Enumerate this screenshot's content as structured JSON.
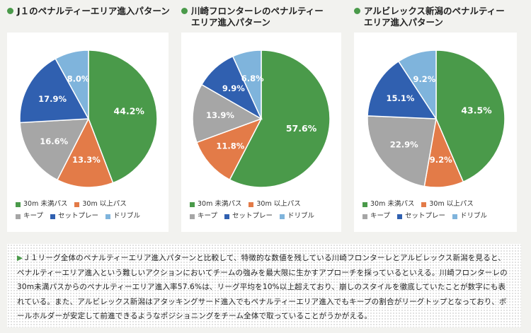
{
  "colors": {
    "green": "#4a9a4a",
    "orange": "#e37b48",
    "gray": "#a6a6a6",
    "blue": "#3060b0",
    "lightblue": "#7fb4dc",
    "label": "#ffffff"
  },
  "legend": {
    "items": [
      "30m 未満パス",
      "30m 以上パス",
      "キープ",
      "セットプレー",
      "ドリブル"
    ]
  },
  "chart_data": [
    {
      "type": "pie",
      "title": "J１のペナルティーエリア進入パターン",
      "categories": [
        "30m 未満パス",
        "30m 以上パス",
        "キープ",
        "セットプレー",
        "ドリブル"
      ],
      "values": [
        44.2,
        13.3,
        16.6,
        17.9,
        8.0
      ],
      "labels": [
        "44.2%",
        "13.3%",
        "16.6%",
        "17.9%",
        "8.0%"
      ],
      "legend_position": "bottom"
    },
    {
      "type": "pie",
      "title": "川崎フロンターレのペナルティーエリア進入パターン",
      "categories": [
        "30m 未満パス",
        "30m 以上パス",
        "キープ",
        "セットプレー",
        "ドリブル"
      ],
      "values": [
        57.6,
        11.8,
        13.9,
        9.9,
        6.8
      ],
      "labels": [
        "57.6%",
        "11.8%",
        "13.9%",
        "9.9%",
        "6.8%"
      ],
      "legend_position": "bottom"
    },
    {
      "type": "pie",
      "title": "アルビレックス新潟のペナルティーエリア進入パターン",
      "categories": [
        "30m 未満パス",
        "30m 以上パス",
        "キープ",
        "セットプレー",
        "ドリブル"
      ],
      "values": [
        43.5,
        9.2,
        22.9,
        15.1,
        9.2
      ],
      "labels": [
        "43.5%",
        "9.2%",
        "22.9%",
        "15.1%",
        "9.2%"
      ],
      "legend_position": "bottom"
    }
  ],
  "panels": [
    {
      "title_line1": "J１のペナルティーエリア進入パターン",
      "title_line2": ""
    },
    {
      "title_line1": "川崎フロンターレのペナルティー",
      "title_line2": "エリア進入パターン"
    },
    {
      "title_line1": "アルビレックス新潟のペナルティー",
      "title_line2": "エリア進入パターン"
    }
  ],
  "description": {
    "marker": "▶",
    "text": "Ｊ１リーグ全体のペナルティーエリア進入パターンと比較して、特徴的な数値を残している川崎フロンターレとアルビレックス新潟を見ると、ペナルティーエリア進入という難しいアクションにおいてチームの強みを最大限に生かすアプローチを採っているといえる。川崎フロンターレの30m未満パスからのペナルティーエリア進入率57.6%は、リーグ平均を10%以上超えており、崩しのスタイルを徹底していたことが数字にも表れている。また、アルビレックス新潟はアタッキングサード進入でもペナルティーエリア進入でもキープの割合がリーグトップとなっており、ボールホルダーが安定して前進できるようなポジショニングをチーム全体で取っていることがうかがえる。"
  }
}
